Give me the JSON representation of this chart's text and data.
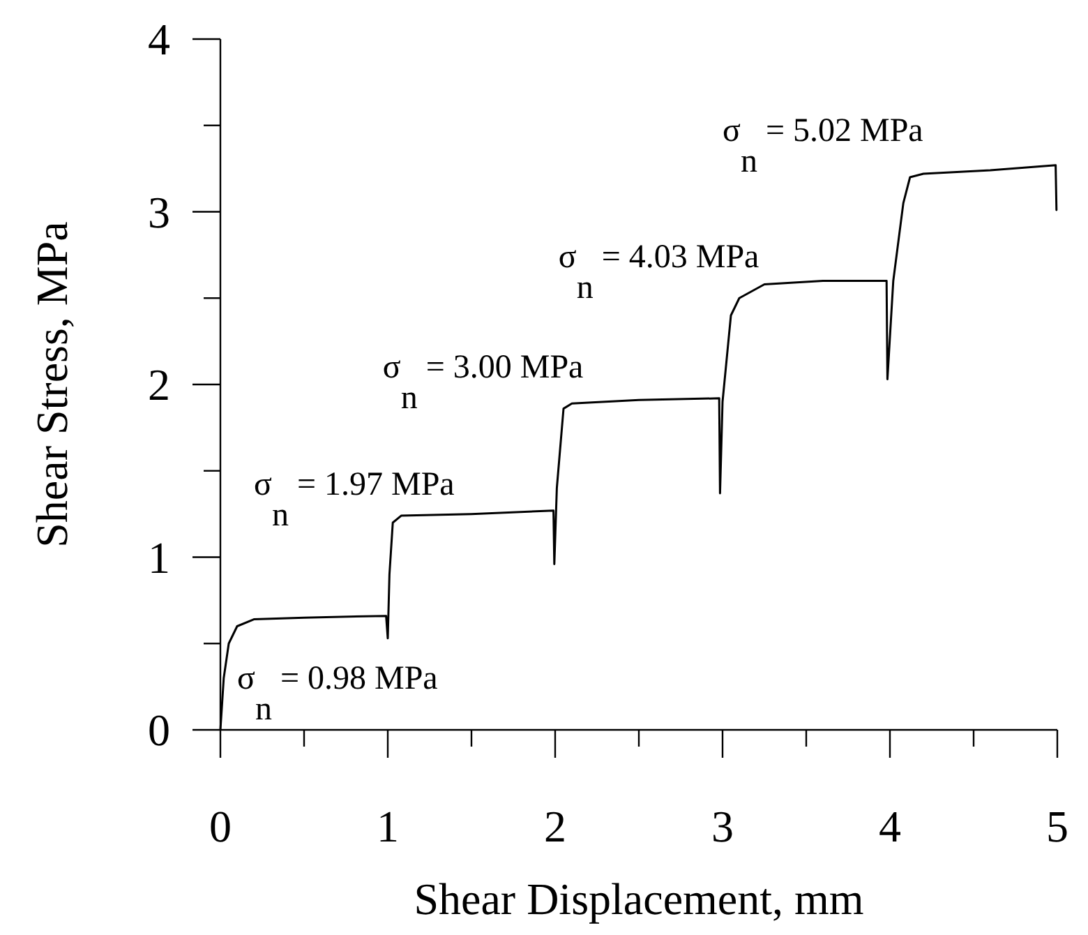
{
  "chart_data": {
    "type": "line",
    "xlabel": "Shear Displacement, mm",
    "ylabel": "Shear Stress, MPa",
    "xlim": [
      0,
      5
    ],
    "ylim": [
      0,
      4
    ],
    "xticks": [
      0,
      {
        "value": 0.5,
        "label": null
      },
      1,
      {
        "value": 1.5,
        "label": null
      },
      2,
      {
        "value": 2.5,
        "label": null
      },
      3,
      {
        "value": 3.5,
        "label": null
      },
      4,
      {
        "value": 4.5,
        "label": null
      },
      5
    ],
    "yticks": [
      0,
      {
        "value": 0.5,
        "label": null
      },
      1,
      {
        "value": 1.5,
        "label": null
      },
      2,
      {
        "value": 2.5,
        "label": null
      },
      3,
      {
        "value": 3.5,
        "label": null
      },
      4
    ],
    "grid": false,
    "marker": "none",
    "line_style": "solid",
    "series": [
      {
        "color": "#000000",
        "x": [
          0,
          0.02,
          0.05,
          0.1,
          0.2,
          0.5,
          0.99,
          1.0,
          1.01,
          1.03,
          1.08,
          1.5,
          1.99,
          1.995,
          2.01,
          2.05,
          2.1,
          2.5,
          2.98,
          2.985,
          3.0,
          3.05,
          3.1,
          3.25,
          3.6,
          3.98,
          3.985,
          4.02,
          4.08,
          4.12,
          4.2,
          4.6,
          4.99,
          4.995
        ],
        "values": [
          0,
          0.3,
          0.5,
          0.6,
          0.64,
          0.65,
          0.66,
          0.53,
          0.9,
          1.2,
          1.24,
          1.25,
          1.27,
          0.96,
          1.4,
          1.86,
          1.89,
          1.91,
          1.92,
          1.37,
          1.9,
          2.4,
          2.5,
          2.58,
          2.6,
          2.6,
          2.03,
          2.6,
          3.05,
          3.2,
          3.22,
          3.24,
          3.27,
          3.01
        ]
      }
    ],
    "annotations": [
      "σ$_{n}$ = 0.98 MPa",
      "σ$_{n}$ = 1.97 MPa",
      "σ$_{n}$ = 3.00 MPa",
      "σ$_{n}$ = 4.03 MPa",
      "σ$_{n}$ = 5.02 MPa"
    ]
  }
}
